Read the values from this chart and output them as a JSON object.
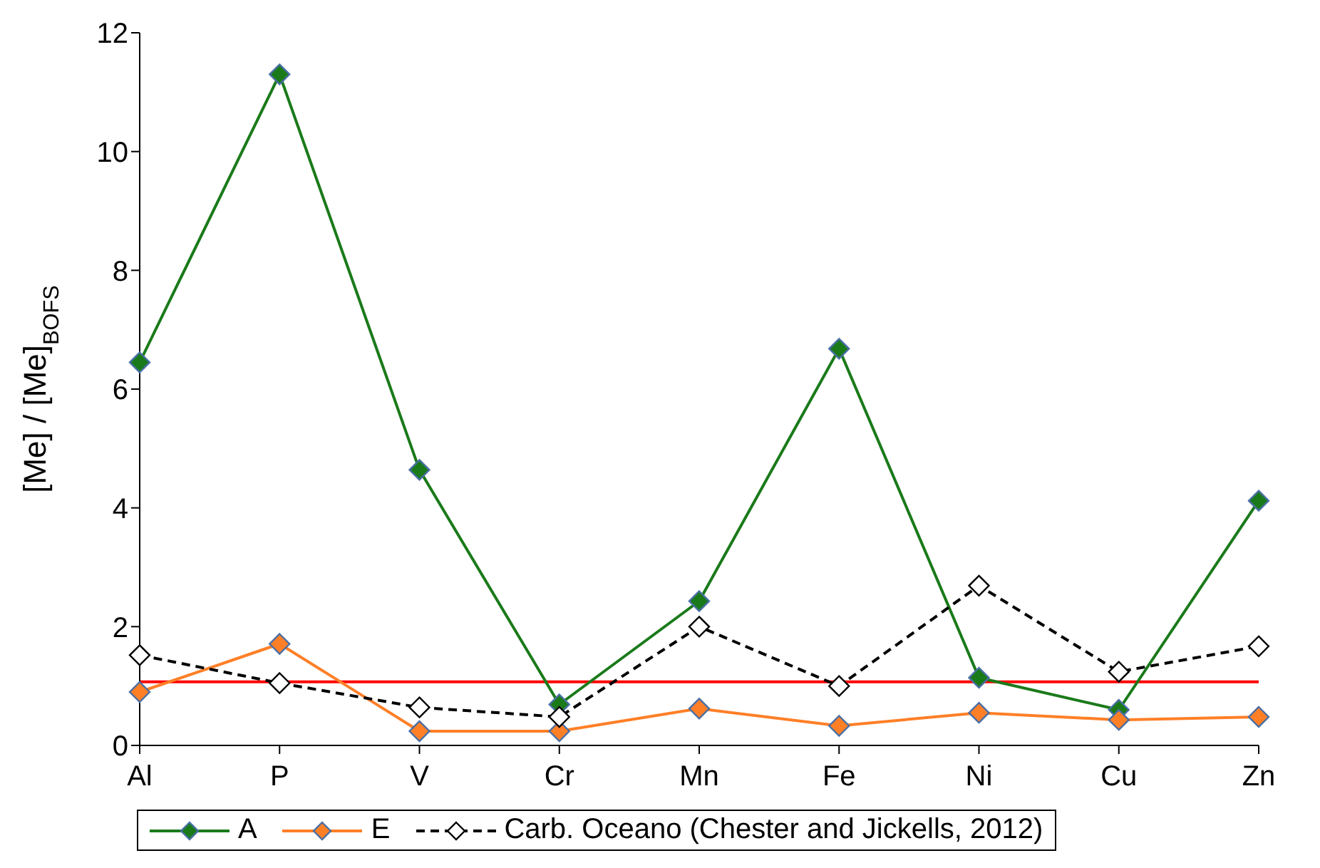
{
  "chart_data": {
    "type": "line",
    "ylabel": "[Me]  / [Me]$_{BOFS}$",
    "categories": [
      "Al",
      "P",
      "V",
      "Cr",
      "Mn",
      "Fe",
      "Ni",
      "Cu",
      "Zn"
    ],
    "series": [
      {
        "name": "A",
        "color": "#1a7a1a",
        "values": [
          6.45,
          11.3,
          4.64,
          0.69,
          2.43,
          6.68,
          1.14,
          0.6,
          4.12
        ],
        "marker": "diamond",
        "line_style": "solid"
      },
      {
        "name": "E",
        "color": "#ff7f27",
        "values": [
          0.9,
          1.71,
          0.24,
          0.24,
          0.62,
          0.33,
          0.55,
          0.43,
          0.48
        ],
        "marker": "diamond",
        "line_style": "solid"
      },
      {
        "name": "Carb. Oceano (Chester and Jickells, 2012)",
        "color": "#000000",
        "values": [
          1.52,
          1.05,
          0.64,
          0.48,
          2.0,
          1.0,
          2.69,
          1.24,
          1.67
        ],
        "marker": "diamond",
        "line_style": "dashed"
      }
    ],
    "ylim": [
      0,
      12
    ],
    "yticks": [
      0,
      2,
      4,
      6,
      8,
      10,
      12
    ],
    "grid": false,
    "legend": "bottom",
    "ref_lines": [
      {
        "axis": "y",
        "value": 1.07,
        "color": "#ff0000"
      }
    ]
  }
}
